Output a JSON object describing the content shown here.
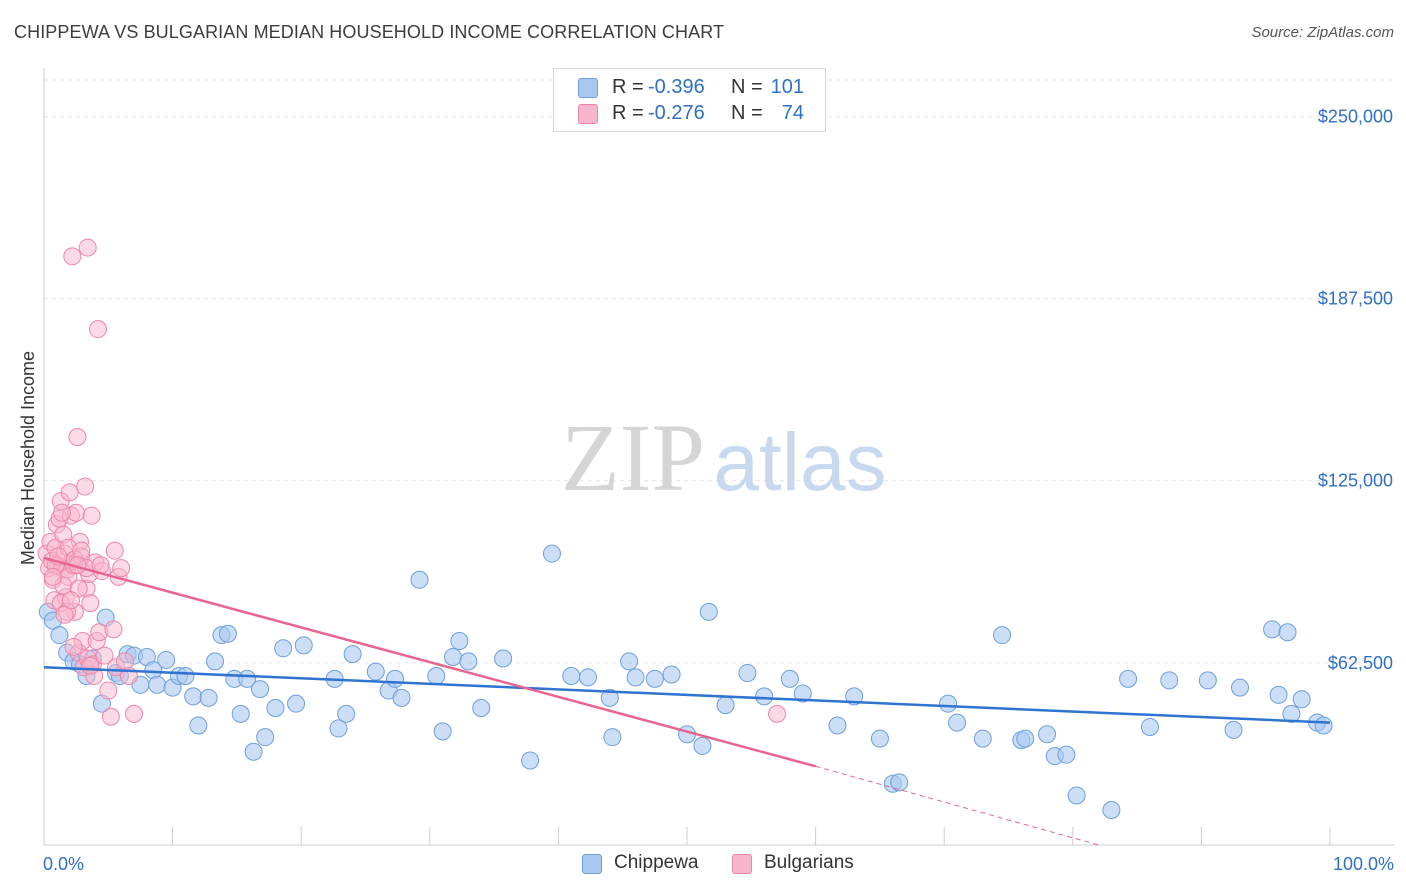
{
  "header": {
    "title": "CHIPPEWA VS BULGARIAN MEDIAN HOUSEHOLD INCOME CORRELATION CHART",
    "source": "Source: ZipAtlas.com"
  },
  "watermark": {
    "zip": "ZIP",
    "atlas": "atlas"
  },
  "colors": {
    "chippewa_fill": "#a9c8f0",
    "chippewa_stroke": "#6e9fdc",
    "chippewa_line": "#2f74d0",
    "bulgarians_fill": "#f7b6cb",
    "bulgarians_stroke": "#ee86a8",
    "bulgarians_line": "#e8648f",
    "axis_value": "#2f6fc4",
    "grid": "#e3e3e3"
  },
  "legend": {
    "rows": [
      {
        "r_label": "R =",
        "r_value": "-0.396",
        "n_label": "N =",
        "n_value": "101"
      },
      {
        "r_label": "R =",
        "r_value": "-0.276",
        "n_label": "N =",
        "n_value": "74"
      }
    ]
  },
  "bottom_legend": {
    "series1": "Chippewa",
    "series2": "Bulgarians"
  },
  "chart_data": {
    "type": "scatter",
    "title": "CHIPPEWA VS BULGARIAN MEDIAN HOUSEHOLD INCOME CORRELATION CHART",
    "xlabel": "",
    "ylabel": "Median Household Income",
    "xlim": [
      0,
      100
    ],
    "ylim": [
      0,
      262500
    ],
    "x_tick_labels": [
      "0.0%",
      "100.0%"
    ],
    "y_ticks": [
      62500,
      125000,
      187500,
      250000
    ],
    "y_tick_labels": [
      "$62,500",
      "$125,000",
      "$187,500",
      "$250,000"
    ],
    "grid": true,
    "legend_position": "top-center",
    "series": [
      {
        "name": "Chippewa",
        "trend": {
          "x": [
            0,
            100
          ],
          "y": [
            61000,
            42000
          ]
        },
        "points": [
          [
            0.3,
            80000
          ],
          [
            0.7,
            77000
          ],
          [
            1.2,
            72000
          ],
          [
            1.8,
            66000
          ],
          [
            2.3,
            63000
          ],
          [
            2.8,
            62000
          ],
          [
            3.3,
            58000
          ],
          [
            3.8,
            64000
          ],
          [
            4.5,
            48500
          ],
          [
            4.8,
            78000
          ],
          [
            5.6,
            59000
          ],
          [
            5.9,
            58000
          ],
          [
            6.5,
            65500
          ],
          [
            7.0,
            65000
          ],
          [
            7.5,
            55000
          ],
          [
            8.0,
            64500
          ],
          [
            8.5,
            60000
          ],
          [
            8.8,
            55000
          ],
          [
            9.5,
            63500
          ],
          [
            10.0,
            54000
          ],
          [
            10.5,
            58000
          ],
          [
            11.0,
            58000
          ],
          [
            11.6,
            51000
          ],
          [
            12.0,
            41000
          ],
          [
            12.8,
            50500
          ],
          [
            13.3,
            63000
          ],
          [
            13.8,
            72000
          ],
          [
            14.3,
            72500
          ],
          [
            14.8,
            57000
          ],
          [
            15.3,
            45000
          ],
          [
            15.8,
            57000
          ],
          [
            16.3,
            32000
          ],
          [
            16.8,
            53500
          ],
          [
            17.2,
            37000
          ],
          [
            18.0,
            47000
          ],
          [
            18.6,
            67500
          ],
          [
            19.6,
            48500
          ],
          [
            20.2,
            68500
          ],
          [
            22.6,
            57000
          ],
          [
            22.9,
            40000
          ],
          [
            23.5,
            45000
          ],
          [
            24.0,
            65500
          ],
          [
            25.8,
            59500
          ],
          [
            26.8,
            53000
          ],
          [
            27.3,
            57000
          ],
          [
            27.8,
            50500
          ],
          [
            29.2,
            91000
          ],
          [
            30.5,
            58000
          ],
          [
            31.0,
            39000
          ],
          [
            31.8,
            64500
          ],
          [
            32.3,
            70000
          ],
          [
            33.0,
            63000
          ],
          [
            34.0,
            47000
          ],
          [
            35.7,
            64000
          ],
          [
            37.8,
            29000
          ],
          [
            41.0,
            58000
          ],
          [
            42.3,
            57500
          ],
          [
            44.0,
            50500
          ],
          [
            44.2,
            37000
          ],
          [
            45.5,
            63000
          ],
          [
            46.0,
            57500
          ],
          [
            47.5,
            57000
          ],
          [
            48.8,
            58500
          ],
          [
            50.0,
            38000
          ],
          [
            51.2,
            34000
          ],
          [
            51.7,
            80000
          ],
          [
            53.0,
            48000
          ],
          [
            54.7,
            59000
          ],
          [
            56.0,
            51000
          ],
          [
            58.0,
            57000
          ],
          [
            59.0,
            52000
          ],
          [
            61.7,
            41000
          ],
          [
            63.0,
            51000
          ],
          [
            65.0,
            36500
          ],
          [
            66.0,
            21000
          ],
          [
            66.5,
            21500
          ],
          [
            70.3,
            48500
          ],
          [
            71.0,
            42000
          ],
          [
            73.0,
            36500
          ],
          [
            74.5,
            72000
          ],
          [
            76.0,
            36000
          ],
          [
            76.3,
            36500
          ],
          [
            78.0,
            38000
          ],
          [
            78.6,
            30500
          ],
          [
            79.5,
            31000
          ],
          [
            80.3,
            17000
          ],
          [
            83.0,
            12000
          ],
          [
            84.3,
            57000
          ],
          [
            86.0,
            40500
          ],
          [
            87.5,
            56500
          ],
          [
            90.5,
            56500
          ],
          [
            92.5,
            39500
          ],
          [
            93.0,
            54000
          ],
          [
            96.0,
            51500
          ],
          [
            97.0,
            45000
          ],
          [
            97.8,
            50000
          ],
          [
            99.0,
            42000
          ],
          [
            99.5,
            41000
          ],
          [
            39.5,
            100000
          ],
          [
            95.5,
            74000
          ],
          [
            96.7,
            73000
          ]
        ]
      },
      {
        "name": "Bulgarians",
        "trend": {
          "x": [
            0,
            60
          ],
          "y": [
            98500,
            27000
          ]
        },
        "trend_dashed": {
          "x": [
            60,
            82
          ],
          "y": [
            27000,
            0
          ]
        },
        "points": [
          [
            0.2,
            100000
          ],
          [
            0.4,
            95000
          ],
          [
            0.5,
            104000
          ],
          [
            0.6,
            97500
          ],
          [
            0.7,
            91000
          ],
          [
            0.8,
            84000
          ],
          [
            0.9,
            102000
          ],
          [
            1.0,
            110000
          ],
          [
            1.1,
            96000
          ],
          [
            1.2,
            112000
          ],
          [
            1.3,
            118000
          ],
          [
            1.4,
            95000
          ],
          [
            1.5,
            106500
          ],
          [
            1.6,
            100000
          ],
          [
            1.7,
            85000
          ],
          [
            1.8,
            94500
          ],
          [
            1.9,
            92000
          ],
          [
            2.0,
            121000
          ],
          [
            2.1,
            113000
          ],
          [
            2.2,
            97500
          ],
          [
            2.3,
            96000
          ],
          [
            2.4,
            80000
          ],
          [
            2.5,
            114000
          ],
          [
            2.6,
            140000
          ],
          [
            2.7,
            66000
          ],
          [
            2.8,
            104000
          ],
          [
            2.9,
            99000
          ],
          [
            3.0,
            70000
          ],
          [
            3.1,
            61000
          ],
          [
            3.2,
            123000
          ],
          [
            3.3,
            88000
          ],
          [
            3.4,
            64000
          ],
          [
            3.5,
            93000
          ],
          [
            3.6,
            83000
          ],
          [
            3.7,
            113000
          ],
          [
            3.8,
            62000
          ],
          [
            3.9,
            58000
          ],
          [
            4.0,
            97000
          ],
          [
            4.1,
            70000
          ],
          [
            4.3,
            73000
          ],
          [
            4.5,
            94000
          ],
          [
            4.7,
            65000
          ],
          [
            5.0,
            53000
          ],
          [
            5.2,
            44000
          ],
          [
            5.4,
            74000
          ],
          [
            5.6,
            61000
          ],
          [
            5.8,
            92000
          ],
          [
            6.0,
            95000
          ],
          [
            6.3,
            63000
          ],
          [
            6.6,
            58000
          ],
          [
            7.0,
            45000
          ],
          [
            2.2,
            202000
          ],
          [
            3.4,
            205000
          ],
          [
            4.2,
            177000
          ],
          [
            1.3,
            83000
          ],
          [
            1.5,
            89000
          ],
          [
            1.9,
            102000
          ],
          [
            2.4,
            98000
          ],
          [
            2.7,
            88000
          ],
          [
            0.9,
            96000
          ],
          [
            1.1,
            99000
          ],
          [
            0.7,
            92000
          ],
          [
            1.8,
            80000
          ],
          [
            2.9,
            101000
          ],
          [
            3.3,
            95000
          ],
          [
            4.4,
            96000
          ],
          [
            5.5,
            101000
          ],
          [
            1.6,
            79000
          ],
          [
            2.1,
            84000
          ],
          [
            2.6,
            96000
          ],
          [
            2.3,
            68000
          ],
          [
            3.6,
            61500
          ],
          [
            1.4,
            114000
          ],
          [
            57.0,
            45000
          ]
        ]
      }
    ]
  }
}
